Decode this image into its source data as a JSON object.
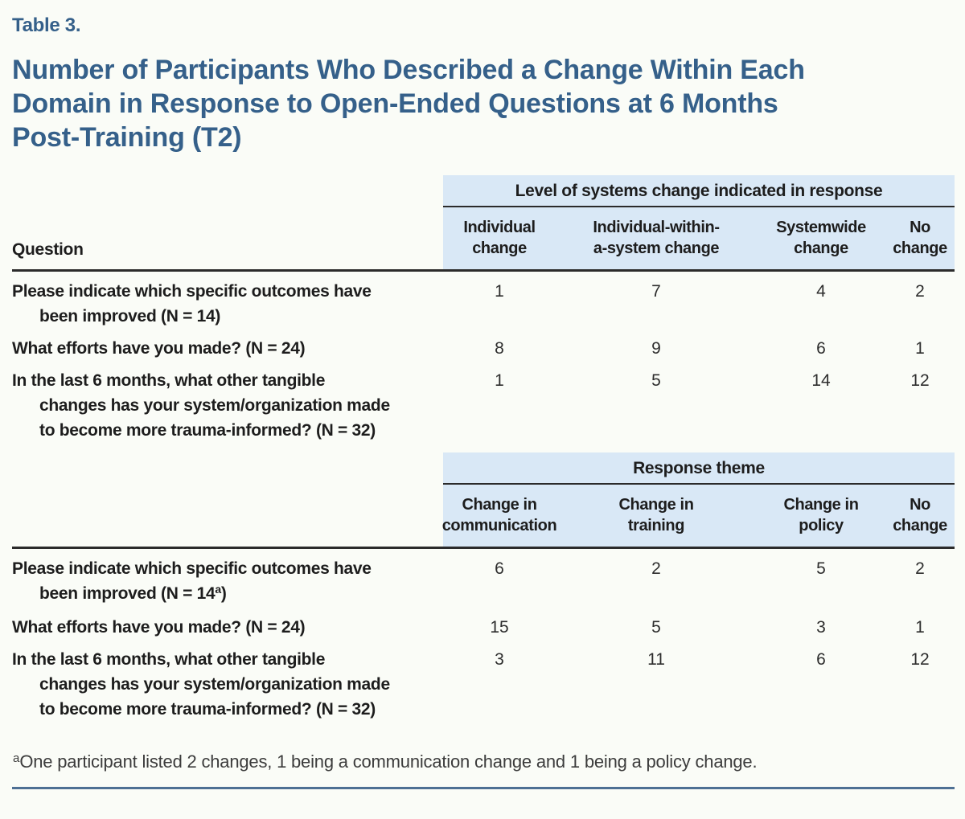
{
  "label": "Table 3.",
  "title": "Number of Participants Who Described a Change Within Each\nDomain in Response to Open-Ended Questions at 6 Months\nPost-Training (T2)",
  "question_header": "Question",
  "table1": {
    "span_header": "Level of systems change indicated in response",
    "columns": [
      "Individual\nchange",
      "Individual-within-\na-system change",
      "Systemwide\nchange",
      "No\nchange"
    ],
    "rows": [
      {
        "lines": [
          "Please indicate which specific outcomes have",
          "been improved (N = 14)"
        ],
        "values": [
          "1",
          "7",
          "4",
          "2"
        ]
      },
      {
        "lines": [
          "What efforts have you made? (N = 24)"
        ],
        "values": [
          "8",
          "9",
          "6",
          "1"
        ]
      },
      {
        "lines": [
          "In the last 6 months, what other tangible",
          "changes has your system/organization made",
          "to become more trauma-informed? (N = 32)"
        ],
        "values": [
          "1",
          "5",
          "14",
          "12"
        ]
      }
    ]
  },
  "table2": {
    "span_header": "Response theme",
    "columns": [
      "Change in\ncommunication",
      "Change in\ntraining",
      "Change in\npolicy",
      "No\nchange"
    ],
    "rows": [
      {
        "lines": [
          "Please indicate which specific outcomes have"
        ],
        "note_line": {
          "pre": "been improved (N = 14",
          "sup": "a",
          "post": ")"
        },
        "values": [
          "6",
          "2",
          "5",
          "2"
        ]
      },
      {
        "lines": [
          "What efforts have you made? (N = 24)"
        ],
        "values": [
          "15",
          "5",
          "3",
          "1"
        ]
      },
      {
        "lines": [
          "In the last 6 months, what other tangible",
          "changes has your system/organization made",
          "to become more trauma-informed? (N = 32)"
        ],
        "values": [
          "3",
          "11",
          "6",
          "12"
        ]
      }
    ]
  },
  "footnote": {
    "sup": "a",
    "text": "One participant listed 2 changes, 1 being a communication change and 1 being a policy change."
  }
}
